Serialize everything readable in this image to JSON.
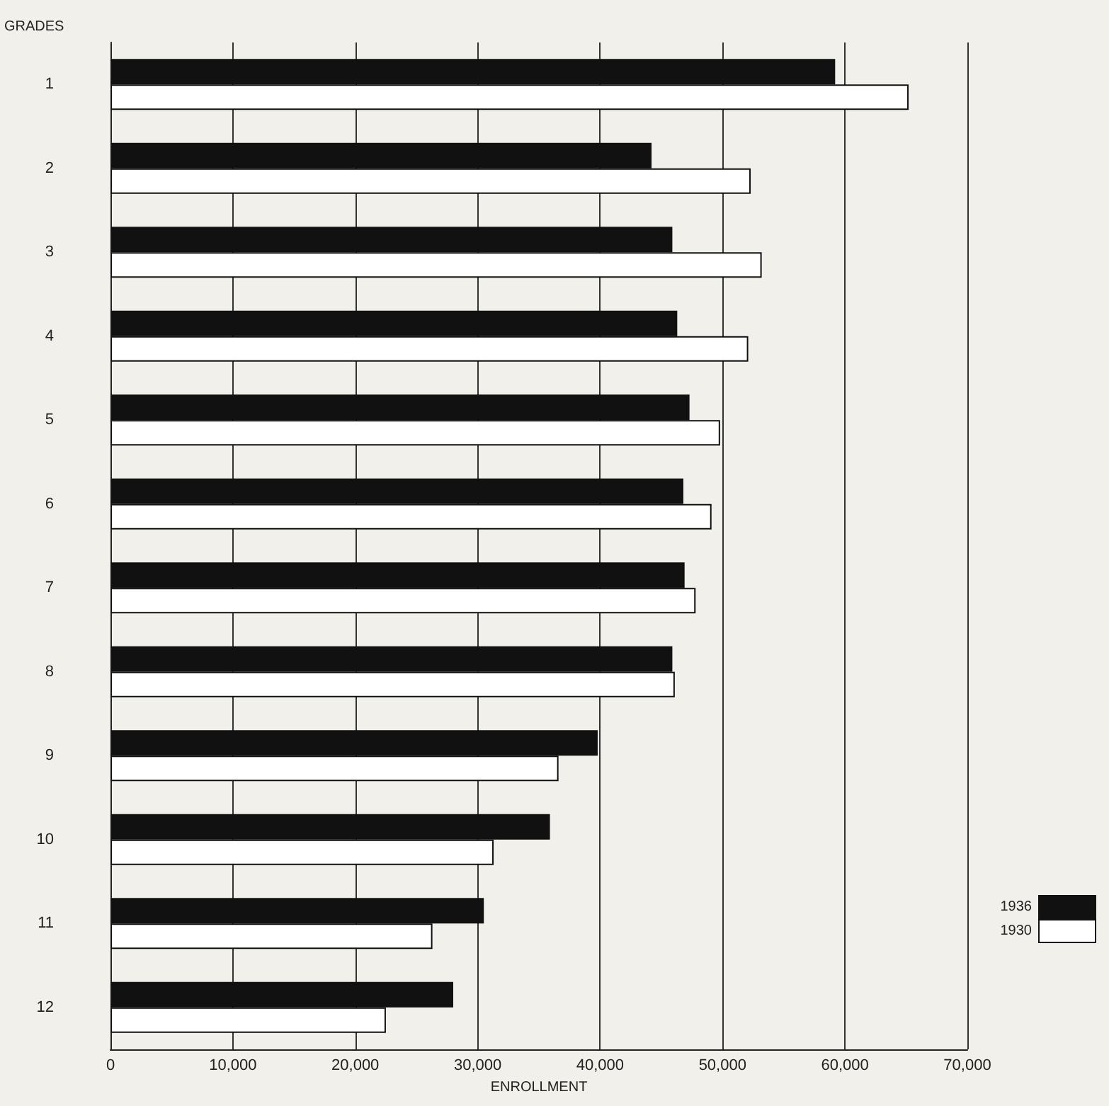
{
  "chart_data": {
    "type": "bar",
    "orientation": "horizontal",
    "xlabel": "ENROLLMENT",
    "ylabel": "GRADES",
    "categories": [
      "1",
      "2",
      "3",
      "4",
      "5",
      "6",
      "7",
      "8",
      "9",
      "10",
      "11",
      "12"
    ],
    "series": [
      {
        "name": "1936",
        "color": "#111111",
        "values": [
          59200,
          44200,
          45900,
          46300,
          47300,
          46800,
          46900,
          45900,
          39800,
          35900,
          30500,
          28000
        ]
      },
      {
        "name": "1930",
        "color": "#ffffff",
        "values": [
          65200,
          52300,
          53200,
          52100,
          49800,
          49100,
          47800,
          46100,
          36600,
          31300,
          26300,
          22500
        ]
      }
    ],
    "xlim": [
      0,
      70000
    ],
    "xticks": [
      0,
      {
        "value": 10000,
        "label": "10,000"
      },
      {
        "value": 20000,
        "label": "20,000"
      },
      {
        "value": 30000,
        "label": "30,000"
      },
      {
        "value": 40000,
        "label": "40,000"
      },
      {
        "value": 50000,
        "label": "50,000"
      },
      {
        "value": 60000,
        "label": "60,000"
      },
      {
        "value": 70000,
        "label": "70,000"
      }
    ],
    "grid": "x",
    "legend": "bottom right"
  }
}
